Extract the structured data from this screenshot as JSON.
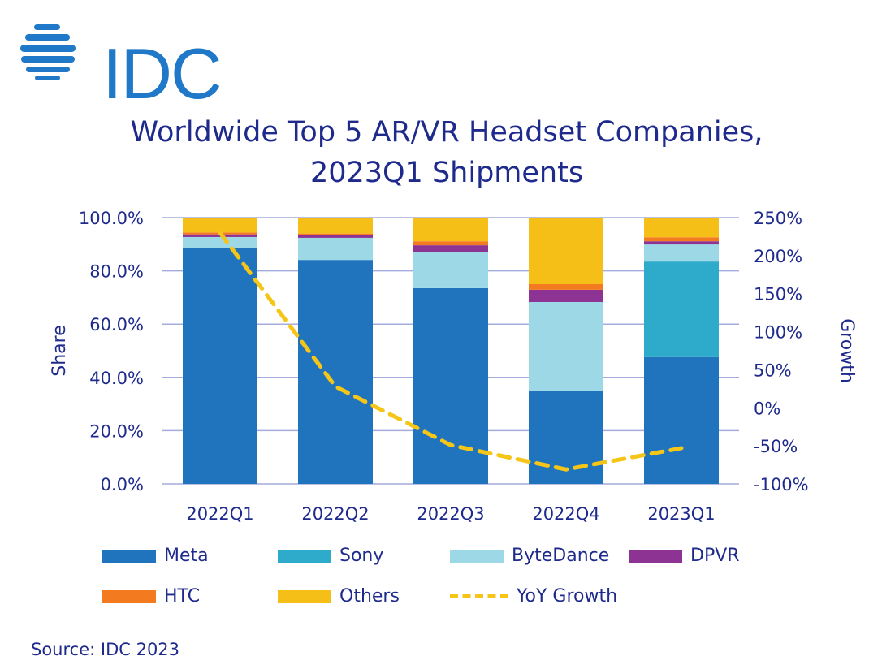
{
  "logo": {
    "text": "IDC"
  },
  "source": "Source: IDC 2023",
  "colors": {
    "Meta": "#1f74bd",
    "Sony": "#2eaacb",
    "ByteDance": "#9dd8e7",
    "DPVR": "#8c3394",
    "HTC": "#f47a20",
    "Others": "#f5bf18",
    "YoY Growth": "#f5c518",
    "text": "#1e2a8c",
    "grid": "#a3acdc"
  },
  "chart_data": {
    "type": "bar",
    "stacked": true,
    "title": "Worldwide Top 5 AR/VR Headset Companies,",
    "subtitle": "2023Q1 Shipments",
    "categories": [
      "2022Q1",
      "2022Q2",
      "2022Q3",
      "2022Q4",
      "2023Q1"
    ],
    "ylabel": "Share",
    "y2label": "Growth",
    "ylim": [
      0,
      100
    ],
    "y2lim": [
      -100,
      250
    ],
    "yticks": [
      "0.0%",
      "20.0%",
      "40.0%",
      "60.0%",
      "80.0%",
      "100.0%"
    ],
    "y2ticks": [
      "-100%",
      "-50%",
      "0%",
      "50%",
      "100%",
      "150%",
      "200%",
      "250%"
    ],
    "grid": true,
    "legend_position": "bottom",
    "series": [
      {
        "name": "Meta",
        "values": [
          88.7,
          84.1,
          73.5,
          35.1,
          47.6
        ]
      },
      {
        "name": "Sony",
        "values": [
          0,
          0,
          0,
          0,
          35.9
        ]
      },
      {
        "name": "ByteDance",
        "values": [
          4.0,
          8.3,
          13.4,
          33.2,
          6.4
        ]
      },
      {
        "name": "DPVR",
        "values": [
          1.0,
          1.0,
          2.7,
          4.6,
          1.2
        ]
      },
      {
        "name": "HTC",
        "values": [
          0.7,
          0.6,
          1.5,
          2.1,
          1.5
        ]
      },
      {
        "name": "Others",
        "values": [
          5.6,
          6.0,
          8.9,
          25.0,
          7.4
        ]
      }
    ],
    "line_series": {
      "name": "YoY Growth",
      "type": "line",
      "axis": "right",
      "values": [
        230,
        28,
        -49,
        -81,
        -53
      ]
    }
  }
}
